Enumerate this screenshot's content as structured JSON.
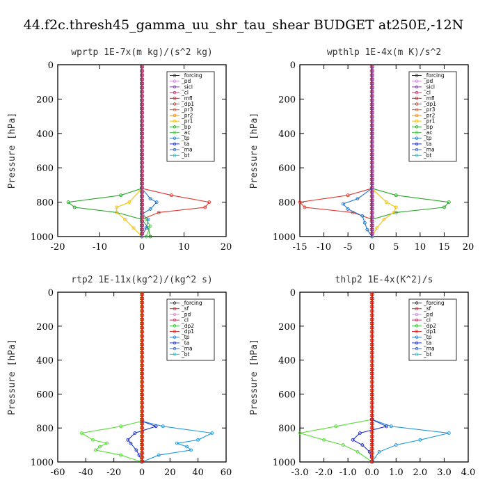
{
  "figure": {
    "title": "44.f2c.thresh45_gamma_uu_shr_tau_shear  BUDGET at250E,-12N"
  },
  "chart_data": [
    {
      "type": "line",
      "title": "wprtp   1E-7x(m kg)/(s^2 kg)",
      "ylabel": "Pressure [hPa]",
      "xlabel": "",
      "xlim": [
        -20,
        20
      ],
      "ylim": [
        1000,
        0
      ],
      "xticks": [
        "-20",
        "-10",
        "0",
        "10",
        "20"
      ],
      "yticks": [
        "0",
        "200",
        "400",
        "600",
        "800",
        "1000"
      ],
      "grid": false,
      "legend": "top-right",
      "legend_entries": [
        "_forcing",
        "_pd",
        "_sicl",
        "_cl",
        "_mfl",
        "_dp1",
        "_pr3",
        "_pr2",
        "_pr1",
        "_bp",
        "_ac",
        "_tp",
        "_ta",
        "_ma",
        "_bt"
      ],
      "series": [
        {
          "name": "_dp1",
          "color": "#e0342c",
          "p": [
            720,
            760,
            800,
            830,
            860,
            900,
            1000
          ],
          "values": [
            0,
            7,
            16,
            15,
            4,
            0,
            0
          ]
        },
        {
          "name": "_bp",
          "color": "#2aa52a",
          "p": [
            720,
            760,
            800,
            830,
            860,
            900,
            950,
            1000
          ],
          "values": [
            0,
            -5,
            -17.5,
            -16,
            -6,
            0,
            1.5,
            2
          ]
        },
        {
          "name": "_pr1",
          "color": "#f2c200",
          "p": [
            720,
            800,
            830,
            860,
            900,
            950,
            1000
          ],
          "values": [
            0,
            -3,
            -6,
            -6,
            -4,
            -2,
            0
          ]
        },
        {
          "name": "_tp",
          "color": "#2277cc",
          "p": [
            720,
            780,
            800,
            840,
            870,
            900,
            950,
            1000
          ],
          "values": [
            0,
            2,
            3.5,
            2,
            0,
            1.5,
            1,
            0
          ]
        },
        {
          "name": "_ac",
          "color": "#55cc55",
          "p": [
            850,
            900,
            940,
            1000
          ],
          "values": [
            0,
            1,
            2,
            1
          ]
        }
      ]
    },
    {
      "type": "line",
      "title": "wpthlp   1E-4x(m K)/s^2",
      "ylabel": "Pressure [hPa]",
      "xlabel": "",
      "xlim": [
        -15,
        20
      ],
      "ylim": [
        1000,
        0
      ],
      "xticks": [
        "-15",
        "-10",
        "-5",
        "0",
        "5",
        "10",
        "15",
        "20"
      ],
      "yticks": [
        "0",
        "200",
        "400",
        "600",
        "800",
        "1000"
      ],
      "grid": false,
      "legend": "top-right",
      "legend_entries": [
        "_forcing",
        "_pd",
        "_sicl",
        "_cl",
        "_mfl",
        "_dp1",
        "_pr3",
        "_pr2",
        "_pr1",
        "_bp",
        "_ac",
        "_tp",
        "_ta",
        "_ma",
        "_bt"
      ],
      "series": [
        {
          "name": "_dp1",
          "color": "#e0342c",
          "p": [
            720,
            760,
            800,
            830,
            860,
            900,
            1000
          ],
          "values": [
            0,
            -5,
            -15,
            -14,
            -4,
            0,
            0
          ]
        },
        {
          "name": "_bp",
          "color": "#2aa52a",
          "p": [
            720,
            760,
            800,
            830,
            860,
            900,
            1000
          ],
          "values": [
            0,
            5,
            16,
            15,
            5,
            0,
            0
          ]
        },
        {
          "name": "_pr1",
          "color": "#f2c200",
          "p": [
            720,
            800,
            830,
            860,
            900,
            950,
            1000
          ],
          "values": [
            0,
            3,
            5,
            4.5,
            2.5,
            1,
            0
          ]
        },
        {
          "name": "_tp",
          "color": "#2277cc",
          "p": [
            720,
            780,
            810,
            840,
            880,
            920,
            960,
            1000
          ],
          "values": [
            0,
            -3,
            -6,
            -5,
            -2,
            -1.5,
            -1,
            0
          ]
        }
      ]
    },
    {
      "type": "line",
      "title": "rtp2   1E-11x(kg^2)/(kg^2 s)",
      "ylabel": "Pressure [hPa]",
      "xlabel": "",
      "xlim": [
        -60,
        60
      ],
      "ylim": [
        1000,
        0
      ],
      "xticks": [
        "-60",
        "-40",
        "-20",
        "0",
        "20",
        "40",
        "60"
      ],
      "yticks": [
        "0",
        "200",
        "400",
        "600",
        "800",
        "1000"
      ],
      "grid": false,
      "legend": "top-right",
      "legend_entries": [
        "_forcing",
        "_sf",
        "_pd",
        "_cl",
        "_dp2",
        "_dp1",
        "_tp",
        "_ta",
        "_ma",
        "_bt"
      ],
      "series": [
        {
          "name": "_dp1",
          "color": "#55dd33",
          "p": [
            760,
            790,
            830,
            870,
            890,
            910,
            930,
            960,
            1000
          ],
          "values": [
            0,
            -15,
            -43,
            -35,
            -25,
            -30,
            -33,
            -15,
            0
          ]
        },
        {
          "name": "_tp",
          "color": "#2299dd",
          "p": [
            760,
            790,
            830,
            870,
            890,
            910,
            930,
            960,
            1000
          ],
          "values": [
            0,
            15,
            50,
            40,
            25,
            32,
            35,
            12,
            0
          ]
        },
        {
          "name": "_ta",
          "color": "#2233cc",
          "p": [
            760,
            790,
            830,
            870,
            890,
            930,
            960,
            1000
          ],
          "values": [
            0,
            10,
            -5,
            -10,
            -8,
            -4,
            -2,
            0
          ]
        }
      ]
    },
    {
      "type": "line",
      "title": "thlp2   1E-4x(K^2)/s",
      "ylabel": "Pressure [hPa]",
      "xlabel": "",
      "xlim": [
        -3.0,
        4.0
      ],
      "ylim": [
        1000,
        0
      ],
      "xticks": [
        "-3.0",
        "-2.0",
        "-1.0",
        "0.0",
        "1.0",
        "2.0",
        "3.0",
        "4.0"
      ],
      "yticks": [
        "0",
        "200",
        "400",
        "600",
        "800",
        "1000"
      ],
      "grid": false,
      "legend": "top-right",
      "legend_entries": [
        "_forcing",
        "_sf",
        "_pd",
        "_cl",
        "_dp2",
        "_dp1",
        "_tp",
        "_ta",
        "_ma",
        "_bt"
      ],
      "series": [
        {
          "name": "_dp1",
          "color": "#55dd33",
          "p": [
            750,
            790,
            830,
            870,
            900,
            940,
            1000
          ],
          "values": [
            0,
            -1.5,
            -3,
            -2,
            -1.2,
            -0.6,
            0
          ]
        },
        {
          "name": "_tp",
          "color": "#2299dd",
          "p": [
            750,
            790,
            830,
            870,
            900,
            940,
            1000
          ],
          "values": [
            0,
            0.8,
            3.2,
            2.0,
            1.0,
            0.3,
            0
          ]
        },
        {
          "name": "_ta",
          "color": "#2233cc",
          "p": [
            750,
            790,
            830,
            870,
            900,
            940,
            1000
          ],
          "values": [
            0,
            0.6,
            -0.5,
            -0.8,
            -0.4,
            -0.1,
            0
          ]
        }
      ]
    }
  ],
  "legend_colors": {
    "_forcing": "#333333",
    "_pd": "#cc88dd",
    "_sicl": "#7744aa",
    "_cl": "#cc3366",
    "_mfl": "#cc2222",
    "_dp1": "#e0342c",
    "_pr3": "#ee5522",
    "_pr2": "#ff8800",
    "_pr1": "#f2c200",
    "_bp": "#2aa52a",
    "_ac": "#55cc55",
    "_tp": "#2277cc",
    "_ta": "#2233cc",
    "_ma": "#3366cc",
    "_bt": "#22cccc",
    "_sf": "#dd2222",
    "_dp2": "#33bb33"
  }
}
